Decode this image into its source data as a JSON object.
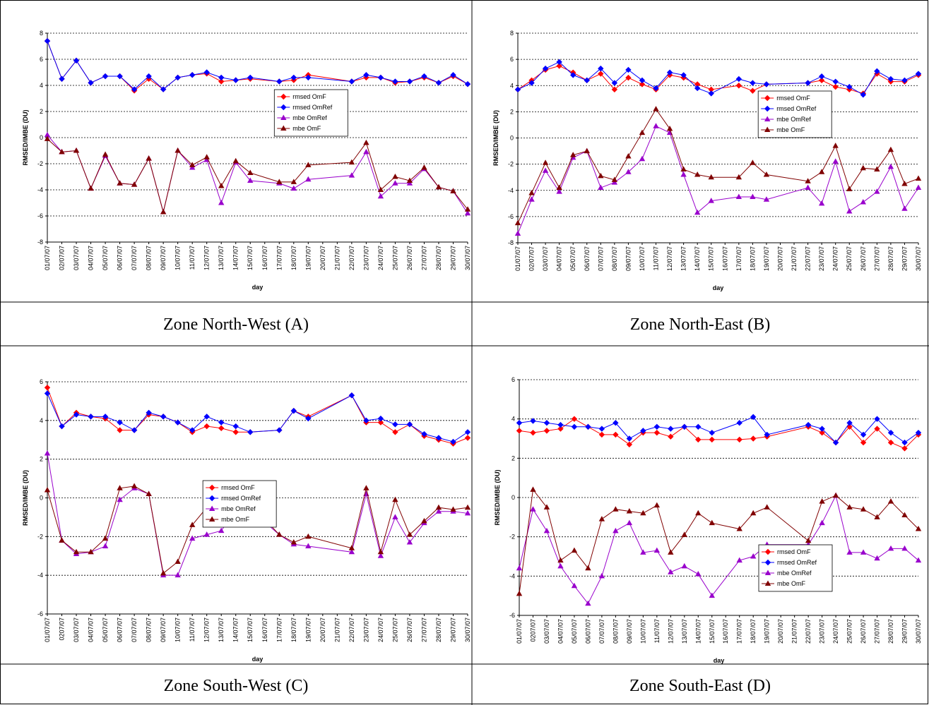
{
  "chart_data": [
    {
      "type": "line",
      "caption": "Zone North-West (A)",
      "xlabel": "day",
      "ylabel": "RMSED/IMBE (DU)",
      "legend": "center",
      "grid": true,
      "categories": [
        "01/07/07",
        "02/07/07",
        "03/07/07",
        "04/07/07",
        "05/07/07",
        "06/07/07",
        "07/07/07",
        "08/07/07",
        "09/07/07",
        "10/07/07",
        "11/07/07",
        "12/07/07",
        "13/07/07",
        "14/07/07",
        "15/07/07",
        "16/07/07",
        "17/07/07",
        "18/07/07",
        "19/07/07",
        "20/07/07",
        "21/07/07",
        "22/07/07",
        "23/07/07",
        "24/07/07",
        "25/07/07",
        "26/07/07",
        "27/07/07",
        "28/07/07",
        "29/07/07",
        "30/07/07"
      ],
      "x": [
        "01/07/07",
        "02/07/07",
        "03/07/07",
        "04/07/07",
        "05/07/07",
        "06/07/07",
        "07/07/07",
        "08/07/07",
        "09/07/07",
        "10/07/07",
        "11/07/07",
        "12/07/07",
        "13/07/07",
        "14/07/07",
        "15/07/07",
        "17/07/07",
        "18/07/07",
        "19/07/07",
        "22/07/07",
        "23/07/07",
        "24/07/07",
        "25/07/07",
        "26/07/07",
        "27/07/07",
        "28/07/07",
        "29/07/07",
        "30/07/07"
      ],
      "ylim": [
        -8,
        8
      ],
      "yticks": [
        -8,
        -6,
        -4,
        -2,
        0,
        2,
        4,
        6,
        8
      ],
      "series": [
        {
          "name": "rmsed OmF",
          "color": "#ff0000",
          "marker": "diamond",
          "values": [
            7.4,
            4.5,
            5.9,
            4.2,
            4.7,
            4.7,
            3.6,
            4.5,
            3.7,
            4.6,
            4.8,
            4.9,
            4.3,
            4.4,
            4.5,
            4.3,
            4.4,
            4.8,
            4.3,
            4.6,
            4.6,
            4.2,
            4.3,
            4.6,
            4.2,
            4.7,
            4.1
          ]
        },
        {
          "name": "rmsed OmRef",
          "color": "#0000ff",
          "marker": "diamond",
          "values": [
            7.4,
            4.5,
            5.9,
            4.2,
            4.7,
            4.7,
            3.7,
            4.7,
            3.7,
            4.6,
            4.8,
            5.0,
            4.6,
            4.4,
            4.6,
            4.3,
            4.6,
            4.6,
            4.3,
            4.8,
            4.6,
            4.3,
            4.3,
            4.7,
            4.2,
            4.8,
            4.1
          ]
        },
        {
          "name": "mbe OmRef",
          "color": "#9900cc",
          "marker": "triangle",
          "values": [
            0.2,
            -1.1,
            -1.0,
            -3.9,
            -1.4,
            -3.5,
            -3.6,
            -1.6,
            -5.7,
            -1.0,
            -2.3,
            -1.7,
            -5.0,
            -1.9,
            -3.3,
            -3.5,
            -3.9,
            -3.2,
            -2.9,
            -1.1,
            -4.5,
            -3.5,
            -3.5,
            -2.4,
            -3.8,
            -4.1,
            -5.8
          ]
        },
        {
          "name": "mbe OmF",
          "color": "#800000",
          "marker": "triangle",
          "values": [
            -0.1,
            -1.1,
            -1.0,
            -3.9,
            -1.3,
            -3.5,
            -3.6,
            -1.6,
            -5.7,
            -1.0,
            -2.1,
            -1.5,
            -3.7,
            -1.8,
            -2.7,
            -3.4,
            -3.4,
            -2.1,
            -1.9,
            -0.4,
            -4.0,
            -3.0,
            -3.3,
            -2.3,
            -3.8,
            -4.1,
            -5.5
          ]
        }
      ]
    },
    {
      "type": "line",
      "caption": "Zone North-East (B)",
      "xlabel": "day",
      "ylabel": "RMSED/IMBE (DU)",
      "legend": "right",
      "grid": true,
      "categories": [
        "01/07/07",
        "02/07/07",
        "03/07/07",
        "04/07/07",
        "05/07/07",
        "06/07/07",
        "07/07/07",
        "08/07/07",
        "09/07/07",
        "10/07/07",
        "11/07/07",
        "12/07/07",
        "13/07/07",
        "14/07/07",
        "15/07/07",
        "16/07/07",
        "17/07/07",
        "18/07/07",
        "19/07/07",
        "20/07/07",
        "21/07/07",
        "22/07/07",
        "23/07/07",
        "24/07/07",
        "25/07/07",
        "26/07/07",
        "27/07/07",
        "28/07/07",
        "29/07/07",
        "30/07/07"
      ],
      "x": [
        "01/07/07",
        "02/07/07",
        "03/07/07",
        "04/07/07",
        "05/07/07",
        "06/07/07",
        "07/07/07",
        "08/07/07",
        "09/07/07",
        "10/07/07",
        "11/07/07",
        "12/07/07",
        "13/07/07",
        "14/07/07",
        "15/07/07",
        "17/07/07",
        "18/07/07",
        "19/07/07",
        "22/07/07",
        "23/07/07",
        "24/07/07",
        "25/07/07",
        "26/07/07",
        "27/07/07",
        "28/07/07",
        "29/07/07",
        "30/07/07"
      ],
      "ylim": [
        -8,
        8
      ],
      "yticks": [
        -8,
        -6,
        -4,
        -2,
        0,
        2,
        4,
        6,
        8
      ],
      "series": [
        {
          "name": "rmsed OmF",
          "color": "#ff0000",
          "marker": "diamond",
          "values": [
            3.7,
            4.4,
            5.2,
            5.5,
            5.0,
            4.4,
            4.9,
            3.7,
            4.6,
            4.1,
            3.7,
            4.8,
            4.6,
            4.1,
            3.7,
            4.0,
            3.6,
            4.1,
            4.2,
            4.4,
            3.9,
            3.7,
            3.4,
            4.9,
            4.3,
            4.3,
            4.8
          ]
        },
        {
          "name": "rmsed OmRef",
          "color": "#0000ff",
          "marker": "diamond",
          "values": [
            3.7,
            4.2,
            5.3,
            5.8,
            4.8,
            4.4,
            5.3,
            4.2,
            5.2,
            4.4,
            3.8,
            5.0,
            4.8,
            3.8,
            3.4,
            4.5,
            4.2,
            4.1,
            4.2,
            4.7,
            4.3,
            3.9,
            3.3,
            5.1,
            4.5,
            4.4,
            4.9
          ]
        },
        {
          "name": "mbe OmRef",
          "color": "#9900cc",
          "marker": "triangle",
          "values": [
            -7.3,
            -4.7,
            -2.5,
            -4.1,
            -1.5,
            -1.0,
            -3.8,
            -3.4,
            -2.6,
            -1.6,
            0.9,
            0.4,
            -2.8,
            -5.7,
            -4.8,
            -4.5,
            -4.5,
            -4.7,
            -3.8,
            -5.0,
            -1.8,
            -5.6,
            -4.9,
            -4.1,
            -2.2,
            -5.4,
            -3.8
          ]
        },
        {
          "name": "mbe OmF",
          "color": "#800000",
          "marker": "triangle",
          "values": [
            -6.5,
            -4.2,
            -1.9,
            -3.8,
            -1.3,
            -1.0,
            -2.9,
            -3.2,
            -1.4,
            0.4,
            2.2,
            0.7,
            -2.4,
            -2.8,
            -3.0,
            -3.0,
            -1.9,
            -2.8,
            -3.3,
            -2.6,
            -0.6,
            -3.9,
            -2.3,
            -2.4,
            -0.9,
            -3.5,
            -3.1
          ]
        }
      ]
    },
    {
      "type": "line",
      "caption": "Zone South-West (C)",
      "xlabel": "day",
      "ylabel": "RMSED/IMBE (DU)",
      "legend": "lower center",
      "grid": true,
      "categories": [
        "01/07/07",
        "0207/07",
        "03/07/07",
        "04/07/07",
        "05/07/07",
        "06/07/07",
        "07/07/07",
        "08/07/07",
        "09/07/07",
        "10/07/07",
        "11/07/07",
        "12/07/07",
        "13/07/07",
        "14/07/07",
        "15/07/07",
        "16/07/07",
        "17/07/07",
        "18/07/07",
        "19/07/07",
        "20/07/07",
        "21/07/07",
        "22/07/07",
        "23/07/07",
        "24/07/07",
        "25/07/07",
        "26/07/07",
        "27/07/07",
        "28/07/07",
        "29/07/07",
        "30/07/07"
      ],
      "x": [
        "01/07/07",
        "0207/07",
        "03/07/07",
        "04/07/07",
        "05/07/07",
        "06/07/07",
        "07/07/07",
        "08/07/07",
        "09/07/07",
        "10/07/07",
        "11/07/07",
        "12/07/07",
        "13/07/07",
        "14/07/07",
        "15/07/07",
        "17/07/07",
        "18/07/07",
        "19/07/07",
        "22/07/07",
        "23/07/07",
        "24/07/07",
        "25/07/07",
        "26/07/07",
        "27/07/07",
        "28/07/07",
        "29/07/07",
        "30/07/07"
      ],
      "ylim": [
        -6,
        6
      ],
      "yticks": [
        -6,
        -4,
        -2,
        0,
        2,
        4,
        6
      ],
      "series": [
        {
          "name": "rmsed OmF",
          "color": "#ff0000",
          "marker": "diamond",
          "values": [
            5.7,
            3.7,
            4.4,
            4.2,
            4.1,
            3.5,
            3.5,
            4.3,
            4.2,
            3.9,
            3.4,
            3.7,
            3.6,
            3.4,
            3.4,
            3.5,
            4.5,
            4.2,
            5.3,
            3.9,
            3.9,
            3.4,
            3.8,
            3.2,
            3.0,
            2.8,
            3.1
          ]
        },
        {
          "name": "rmsed OmRef",
          "color": "#0000ff",
          "marker": "diamond",
          "values": [
            5.4,
            3.7,
            4.3,
            4.2,
            4.2,
            3.9,
            3.5,
            4.4,
            4.2,
            3.9,
            3.5,
            4.2,
            3.9,
            3.7,
            3.4,
            3.5,
            4.5,
            4.1,
            5.3,
            4.0,
            4.1,
            3.8,
            3.8,
            3.3,
            3.1,
            2.9,
            3.4
          ]
        },
        {
          "name": "mbe OmRef",
          "color": "#9900cc",
          "marker": "triangle",
          "values": [
            2.3,
            -2.2,
            -2.9,
            -2.8,
            -2.5,
            -0.1,
            0.5,
            0.2,
            -4.0,
            -4.0,
            -2.1,
            -1.9,
            -1.7,
            -0.6,
            -0.6,
            -1.9,
            -2.4,
            -2.5,
            -2.8,
            0.2,
            -3.0,
            -1.0,
            -2.3,
            -1.3,
            -0.7,
            -0.7,
            -0.8
          ]
        },
        {
          "name": "mbe OmF",
          "color": "#800000",
          "marker": "triangle",
          "values": [
            0.4,
            -2.2,
            -2.8,
            -2.8,
            -2.1,
            0.5,
            0.6,
            0.2,
            -3.9,
            -3.3,
            -1.4,
            -0.5,
            -0.8,
            0.3,
            -0.3,
            -1.9,
            -2.3,
            -2.0,
            -2.6,
            0.5,
            -2.8,
            -0.1,
            -1.9,
            -1.2,
            -0.5,
            -0.6,
            -0.5
          ]
        }
      ]
    },
    {
      "type": "line",
      "caption": "Zone South-East (D)",
      "xlabel": "day",
      "ylabel": "RMSED/IMBE (DU)",
      "legend": "lower right",
      "grid": true,
      "categories": [
        "01/07/07",
        "0207/07",
        "03/07/07",
        "04/07/07",
        "05/07/07",
        "06/07/07",
        "07/07/07",
        "08/07/07",
        "09/07/07",
        "10/07/07",
        "11/07/07",
        "12/07/07",
        "13/07/07",
        "14/07/07",
        "15/07/07",
        "16/07/07",
        "17/07/07",
        "18/07/07",
        "19/07/07",
        "20/07/07",
        "21/07/07",
        "22/07/07",
        "23/07/07",
        "24/07/07",
        "25/07/07",
        "26/07/07",
        "27/07/07",
        "28/07/07",
        "29/07/07",
        "30/07/07"
      ],
      "x": [
        "01/07/07",
        "0207/07",
        "03/07/07",
        "04/07/07",
        "05/07/07",
        "06/07/07",
        "07/07/07",
        "08/07/07",
        "09/07/07",
        "10/07/07",
        "11/07/07",
        "12/07/07",
        "13/07/07",
        "14/07/07",
        "15/07/07",
        "17/07/07",
        "18/07/07",
        "19/07/07",
        "22/07/07",
        "23/07/07",
        "24/07/07",
        "25/07/07",
        "26/07/07",
        "27/07/07",
        "28/07/07",
        "29/07/07",
        "30/07/07"
      ],
      "ylim": [
        -6,
        6
      ],
      "yticks": [
        -6,
        -4,
        -2,
        0,
        2,
        4,
        6
      ],
      "series": [
        {
          "name": "rmsed OmF",
          "color": "#ff0000",
          "marker": "diamond",
          "values": [
            3.4,
            3.3,
            3.4,
            3.5,
            4.0,
            3.6,
            3.2,
            3.2,
            2.7,
            3.3,
            3.3,
            3.1,
            3.6,
            2.95,
            2.95,
            2.95,
            3.0,
            3.1,
            3.6,
            3.3,
            2.8,
            3.6,
            2.8,
            3.5,
            2.8,
            2.5,
            3.2
          ]
        },
        {
          "name": "rmsed OmRef",
          "color": "#0000ff",
          "marker": "diamond",
          "values": [
            3.8,
            3.9,
            3.8,
            3.7,
            3.6,
            3.6,
            3.5,
            3.8,
            3.0,
            3.4,
            3.6,
            3.5,
            3.6,
            3.6,
            3.3,
            3.8,
            4.1,
            3.2,
            3.7,
            3.5,
            2.8,
            3.8,
            3.2,
            4.0,
            3.3,
            2.8,
            3.3
          ]
        },
        {
          "name": "mbe OmRef",
          "color": "#9900cc",
          "marker": "triangle",
          "values": [
            -3.6,
            -0.6,
            -1.7,
            -3.5,
            -4.5,
            -5.4,
            -4.0,
            -1.7,
            -1.3,
            -2.8,
            -2.7,
            -3.8,
            -3.5,
            -3.9,
            -5.0,
            -3.2,
            -3.0,
            -2.4,
            -2.4,
            -1.3,
            0.1,
            -2.8,
            -2.8,
            -3.1,
            -2.6,
            -2.6,
            -3.2
          ]
        },
        {
          "name": "mbe OmF",
          "color": "#800000",
          "marker": "triangle",
          "values": [
            -4.9,
            0.4,
            -0.5,
            -3.2,
            -2.7,
            -3.6,
            -1.1,
            -0.6,
            -0.7,
            -0.8,
            -0.4,
            -2.8,
            -1.9,
            -0.8,
            -1.3,
            -1.6,
            -0.8,
            -0.5,
            -2.2,
            -0.2,
            0.1,
            -0.5,
            -0.6,
            -1.0,
            -0.2,
            -0.9,
            -1.6
          ]
        }
      ]
    }
  ]
}
